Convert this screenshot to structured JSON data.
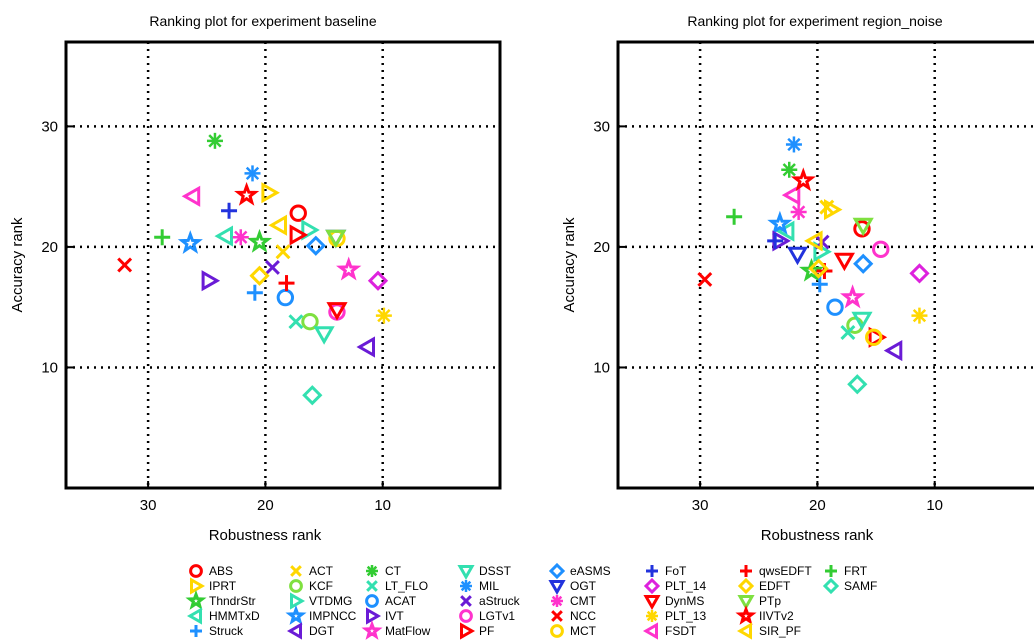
{
  "chart_data": [
    {
      "type": "scatter",
      "title": "Ranking plot for experiment baseline",
      "xlabel": "Robustness rank",
      "ylabel": "Accuracy rank",
      "xlim": [
        37,
        0
      ],
      "ylim": [
        37,
        0
      ],
      "x_ticks": [
        30,
        20,
        10
      ],
      "y_ticks": [
        10,
        20,
        30
      ],
      "grid": true,
      "points": [
        {
          "tracker": "ABS",
          "x": 17.2,
          "y": 22.8
        },
        {
          "tracker": "IPRT",
          "x": 19.7,
          "y": 24.5
        },
        {
          "tracker": "ThndrStr",
          "x": 20.5,
          "y": 20.4
        },
        {
          "tracker": "HMMTxD",
          "x": 23.4,
          "y": 20.9
        },
        {
          "tracker": "Struck",
          "x": 20.9,
          "y": 16.2
        },
        {
          "tracker": "ACT",
          "x": 18.5,
          "y": 19.6
        },
        {
          "tracker": "KCF",
          "x": 16.2,
          "y": 13.8
        },
        {
          "tracker": "VTDMG",
          "x": 16.3,
          "y": 21.4
        },
        {
          "tracker": "IMPNCC",
          "x": 26.4,
          "y": 20.3
        },
        {
          "tracker": "DGT",
          "x": 11.3,
          "y": 11.7
        },
        {
          "tracker": "CT",
          "x": 24.3,
          "y": 28.8
        },
        {
          "tracker": "LT_FLO",
          "x": 17.4,
          "y": 13.8
        },
        {
          "tracker": "ACAT",
          "x": 18.3,
          "y": 15.8
        },
        {
          "tracker": "IVT",
          "x": 24.8,
          "y": 17.2
        },
        {
          "tracker": "MatFlow",
          "x": 12.9,
          "y": 18.1
        },
        {
          "tracker": "DSST",
          "x": 15.0,
          "y": 12.8
        },
        {
          "tracker": "MIL",
          "x": 21.1,
          "y": 26.1
        },
        {
          "tracker": "aStruck",
          "x": 19.4,
          "y": 18.3
        },
        {
          "tracker": "LGTv1",
          "x": 13.9,
          "y": 14.6
        },
        {
          "tracker": "PF",
          "x": 17.3,
          "y": 21.0
        },
        {
          "tracker": "eASMS",
          "x": 15.7,
          "y": 20.1
        },
        {
          "tracker": "OGT",
          "x": 14.0,
          "y": 20.8
        },
        {
          "tracker": "CMT",
          "x": 22.1,
          "y": 20.8
        },
        {
          "tracker": "NCC",
          "x": 32.0,
          "y": 18.5
        },
        {
          "tracker": "MCT",
          "x": 13.9,
          "y": 20.7
        },
        {
          "tracker": "FoT",
          "x": 23.1,
          "y": 23.0
        },
        {
          "tracker": "PLT_14",
          "x": 10.4,
          "y": 17.2
        },
        {
          "tracker": "DynMS",
          "x": 13.9,
          "y": 14.8
        },
        {
          "tracker": "PLT_13",
          "x": 9.9,
          "y": 14.3
        },
        {
          "tracker": "FSDT",
          "x": 26.2,
          "y": 24.2
        },
        {
          "tracker": "qwsEDFT",
          "x": 18.2,
          "y": 17.0
        },
        {
          "tracker": "EDFT",
          "x": 20.5,
          "y": 17.6
        },
        {
          "tracker": "PTp",
          "x": 14.0,
          "y": 20.8
        },
        {
          "tracker": "IIVTv2",
          "x": 21.6,
          "y": 24.3
        },
        {
          "tracker": "SIR_PF",
          "x": 18.8,
          "y": 21.8
        },
        {
          "tracker": "FRT",
          "x": 28.8,
          "y": 20.8
        },
        {
          "tracker": "SAMF",
          "x": 16.0,
          "y": 7.7
        }
      ]
    },
    {
      "type": "scatter",
      "title": "Ranking plot for experiment region_noise",
      "xlabel": "Robustness rank",
      "ylabel": "Accuracy rank",
      "xlim": [
        37,
        0
      ],
      "ylim": [
        37,
        0
      ],
      "x_ticks": [
        30,
        20,
        10
      ],
      "y_ticks": [
        10,
        20,
        30
      ],
      "grid": true,
      "points": [
        {
          "tracker": "ABS",
          "x": 16.2,
          "y": 21.5
        },
        {
          "tracker": "IPRT",
          "x": 18.8,
          "y": 23.1
        },
        {
          "tracker": "ThndrStr",
          "x": 20.5,
          "y": 18.0
        },
        {
          "tracker": "HMMTxD",
          "x": 22.6,
          "y": 21.3
        },
        {
          "tracker": "Struck",
          "x": 19.8,
          "y": 16.9
        },
        {
          "tracker": "ACT",
          "x": 19.2,
          "y": 23.3
        },
        {
          "tracker": "KCF",
          "x": 16.8,
          "y": 13.5
        },
        {
          "tracker": "VTDMG",
          "x": 19.7,
          "y": 19.6
        },
        {
          "tracker": "IMPNCC",
          "x": 23.2,
          "y": 21.9
        },
        {
          "tracker": "DGT",
          "x": 13.4,
          "y": 11.4
        },
        {
          "tracker": "CT",
          "x": 22.4,
          "y": 26.4
        },
        {
          "tracker": "LT_FLO",
          "x": 17.4,
          "y": 12.9
        },
        {
          "tracker": "ACAT",
          "x": 18.5,
          "y": 15.0
        },
        {
          "tracker": "IVT",
          "x": 23.2,
          "y": 20.5
        },
        {
          "tracker": "MatFlow",
          "x": 17.0,
          "y": 15.8
        },
        {
          "tracker": "DSST",
          "x": 16.2,
          "y": 14.0
        },
        {
          "tracker": "MIL",
          "x": 22.0,
          "y": 28.5
        },
        {
          "tracker": "aStruck",
          "x": 19.6,
          "y": 20.4
        },
        {
          "tracker": "LGTv1",
          "x": 14.6,
          "y": 19.8
        },
        {
          "tracker": "PF",
          "x": 15.0,
          "y": 12.5
        },
        {
          "tracker": "eASMS",
          "x": 16.1,
          "y": 18.6
        },
        {
          "tracker": "OGT",
          "x": 21.7,
          "y": 19.4
        },
        {
          "tracker": "CMT",
          "x": 21.6,
          "y": 22.9
        },
        {
          "tracker": "NCC",
          "x": 29.6,
          "y": 17.3
        },
        {
          "tracker": "MCT",
          "x": 15.2,
          "y": 12.5
        },
        {
          "tracker": "FoT",
          "x": 23.6,
          "y": 20.5
        },
        {
          "tracker": "PLT_14",
          "x": 11.3,
          "y": 17.8
        },
        {
          "tracker": "DynMS",
          "x": 17.7,
          "y": 18.9
        },
        {
          "tracker": "PLT_13",
          "x": 11.3,
          "y": 14.3
        },
        {
          "tracker": "FSDT",
          "x": 22.1,
          "y": 24.3
        },
        {
          "tracker": "qwsEDFT",
          "x": 19.4,
          "y": 18.0
        },
        {
          "tracker": "EDFT",
          "x": 19.9,
          "y": 18.2
        },
        {
          "tracker": "PTp",
          "x": 16.1,
          "y": 21.8
        },
        {
          "tracker": "IIVTv2",
          "x": 21.2,
          "y": 25.5
        },
        {
          "tracker": "SIR_PF",
          "x": 20.2,
          "y": 20.5
        },
        {
          "tracker": "FRT",
          "x": 27.1,
          "y": 22.5
        },
        {
          "tracker": "SAMF",
          "x": 16.6,
          "y": 8.6
        }
      ]
    }
  ],
  "legend": [
    {
      "name": "ABS",
      "marker": "circle",
      "color": "#ff0000"
    },
    {
      "name": "IPRT",
      "marker": "tri-right",
      "color": "#ffd700"
    },
    {
      "name": "ThndrStr",
      "marker": "star",
      "color": "#33cc33"
    },
    {
      "name": "HMMTxD",
      "marker": "tri-left",
      "color": "#33e0b0"
    },
    {
      "name": "Struck",
      "marker": "plus",
      "color": "#1e90ff"
    },
    {
      "name": "ACT",
      "marker": "x",
      "color": "#ffd700"
    },
    {
      "name": "KCF",
      "marker": "circle",
      "color": "#7fe040"
    },
    {
      "name": "VTDMG",
      "marker": "tri-right",
      "color": "#33e0b0"
    },
    {
      "name": "IMPNCC",
      "marker": "star",
      "color": "#1e90ff"
    },
    {
      "name": "DGT",
      "marker": "tri-left",
      "color": "#6a1bd6"
    },
    {
      "name": "CT",
      "marker": "asterisk",
      "color": "#33cc33"
    },
    {
      "name": "LT_FLO",
      "marker": "x",
      "color": "#33e0b0"
    },
    {
      "name": "ACAT",
      "marker": "circle",
      "color": "#1e90ff"
    },
    {
      "name": "IVT",
      "marker": "tri-right",
      "color": "#6a1bd6"
    },
    {
      "name": "MatFlow",
      "marker": "star",
      "color": "#ff33cc"
    },
    {
      "name": "DSST",
      "marker": "tri-down",
      "color": "#33e0b0"
    },
    {
      "name": "MIL",
      "marker": "asterisk",
      "color": "#1e90ff"
    },
    {
      "name": "aStruck",
      "marker": "x",
      "color": "#6a1bd6"
    },
    {
      "name": "LGTv1",
      "marker": "circle",
      "color": "#ff33cc"
    },
    {
      "name": "PF",
      "marker": "tri-right",
      "color": "#ff0000"
    },
    {
      "name": "eASMS",
      "marker": "diamond",
      "color": "#1e90ff"
    },
    {
      "name": "OGT",
      "marker": "tri-down",
      "color": "#2233dd"
    },
    {
      "name": "CMT",
      "marker": "asterisk",
      "color": "#ff33cc"
    },
    {
      "name": "NCC",
      "marker": "x",
      "color": "#ff0000"
    },
    {
      "name": "MCT",
      "marker": "circle",
      "color": "#ffd700"
    },
    {
      "name": "FoT",
      "marker": "plus",
      "color": "#2233dd"
    },
    {
      "name": "PLT_14",
      "marker": "diamond",
      "color": "#dd22dd"
    },
    {
      "name": "DynMS",
      "marker": "tri-down",
      "color": "#ff0000"
    },
    {
      "name": "PLT_13",
      "marker": "asterisk",
      "color": "#ffd700"
    },
    {
      "name": "FSDT",
      "marker": "tri-left",
      "color": "#ff33cc"
    },
    {
      "name": "qwsEDFT",
      "marker": "plus",
      "color": "#ff0000"
    },
    {
      "name": "EDFT",
      "marker": "diamond",
      "color": "#ffd700"
    },
    {
      "name": "PTp",
      "marker": "tri-down",
      "color": "#7fe040"
    },
    {
      "name": "IIVTv2",
      "marker": "star",
      "color": "#ff0000"
    },
    {
      "name": "SIR_PF",
      "marker": "tri-left",
      "color": "#ffd700"
    },
    {
      "name": "FRT",
      "marker": "plus",
      "color": "#33cc33"
    },
    {
      "name": "SAMF",
      "marker": "diamond",
      "color": "#33e0b0"
    }
  ]
}
